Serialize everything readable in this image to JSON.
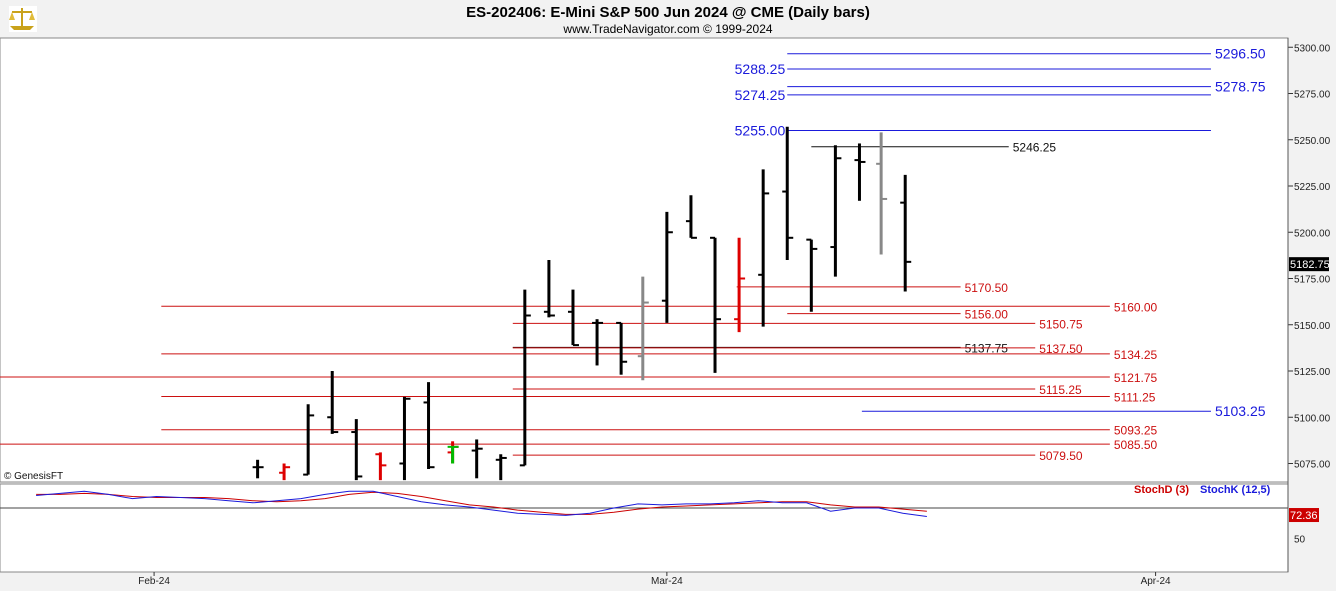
{
  "header": {
    "title": "ES-202406:  E-Mini S&P 500 Jun 2024 @ CME  (Daily bars)",
    "subtitle": "www.TradeNavigator.com © 1999-2024",
    "logo_icon": "trade-navigator-scales-logo"
  },
  "copyright": "© GenesisFT",
  "colors": {
    "up_bar": "#000000",
    "red_bar": "#dd0000",
    "gray_bar": "#888888",
    "green_bar": "#00bb00",
    "red_level": "#cc1010",
    "blue_level": "#1a1adb",
    "stoch_d": "#cc0000",
    "stoch_k": "#1a1adb"
  },
  "chart_data": {
    "type": "ohlc",
    "price_axis": {
      "ylim": [
        5065,
        5305
      ],
      "ticks": [
        5300,
        5275,
        5250,
        5225,
        5200,
        5175,
        5150,
        5125,
        5100,
        5075
      ],
      "tick_labels": [
        "5300.00",
        "5275.00",
        "5250.00",
        "5225.00",
        "5200.00",
        "5175.00",
        "5150.00",
        "5125.00",
        "5100.00",
        "5075.00"
      ],
      "last_price": "5182.75"
    },
    "x_axis": {
      "tick_labels": [
        "Feb-24",
        "Mar-24",
        "Apr-24"
      ],
      "tick_slots": [
        6.4,
        27.7,
        48.0
      ],
      "slot_range": [
        0,
        53.5
      ]
    },
    "bars": [
      {
        "slot": 10.7,
        "open": 5073,
        "high": 5077,
        "low": 5067,
        "close": 5073,
        "color": "black"
      },
      {
        "slot": 11.8,
        "open": 5070,
        "high": 5075,
        "low": 5066,
        "close": 5073,
        "color": "red"
      },
      {
        "slot": 12.8,
        "open": 5069,
        "high": 5107,
        "low": 5069,
        "close": 5101,
        "color": "black"
      },
      {
        "slot": 13.8,
        "open": 5100,
        "high": 5125,
        "low": 5091,
        "close": 5092,
        "color": "black"
      },
      {
        "slot": 14.8,
        "open": 5092,
        "high": 5099,
        "low": 5066,
        "close": 5068,
        "color": "black"
      },
      {
        "slot": 15.8,
        "open": 5080,
        "high": 5081,
        "low": 5066,
        "close": 5074,
        "color": "red"
      },
      {
        "slot": 16.8,
        "open": 5075,
        "high": 5111,
        "low": 5066,
        "close": 5110,
        "color": "black"
      },
      {
        "slot": 17.8,
        "open": 5108,
        "high": 5119,
        "low": 5072,
        "close": 5073,
        "color": "black"
      },
      {
        "slot": 18.8,
        "open": 5081,
        "high": 5087,
        "low": 5075,
        "close": 5084,
        "color": "red"
      },
      {
        "slot": 18.8,
        "open": 5084,
        "high": 5080,
        "low": 5075,
        "close": 5084,
        "color": "green"
      },
      {
        "slot": 19.8,
        "open": 5082,
        "high": 5088,
        "low": 5067,
        "close": 5083,
        "color": "black"
      },
      {
        "slot": 20.8,
        "open": 5077,
        "high": 5080,
        "low": 5066,
        "close": 5078,
        "color": "black"
      },
      {
        "slot": 21.8,
        "open": 5074,
        "high": 5169,
        "low": 5074,
        "close": 5155,
        "color": "black"
      },
      {
        "slot": 22.8,
        "open": 5157,
        "high": 5185,
        "low": 5154,
        "close": 5155,
        "color": "black"
      },
      {
        "slot": 23.8,
        "open": 5157,
        "high": 5169,
        "low": 5139,
        "close": 5139,
        "color": "black"
      },
      {
        "slot": 24.8,
        "open": 5151,
        "high": 5153,
        "low": 5128,
        "close": 5151,
        "color": "black"
      },
      {
        "slot": 25.8,
        "open": 5151,
        "high": 5151,
        "low": 5123,
        "close": 5130,
        "color": "black"
      },
      {
        "slot": 26.7,
        "open": 5133,
        "high": 5176,
        "low": 5120,
        "close": 5162,
        "color": "gray"
      },
      {
        "slot": 27.7,
        "open": 5163,
        "high": 5211,
        "low": 5151,
        "close": 5200,
        "color": "black"
      },
      {
        "slot": 28.7,
        "open": 5206,
        "high": 5220,
        "low": 5197,
        "close": 5197,
        "color": "black"
      },
      {
        "slot": 29.7,
        "open": 5197,
        "high": 5197,
        "low": 5124,
        "close": 5153,
        "color": "black"
      },
      {
        "slot": 30.7,
        "open": 5153,
        "high": 5197,
        "low": 5146,
        "close": 5175,
        "color": "red"
      },
      {
        "slot": 31.7,
        "open": 5177,
        "high": 5234,
        "low": 5149,
        "close": 5221,
        "color": "black"
      },
      {
        "slot": 32.7,
        "open": 5222,
        "high": 5257,
        "low": 5185,
        "close": 5197,
        "color": "black"
      },
      {
        "slot": 33.7,
        "open": 5196,
        "high": 5196,
        "low": 5157,
        "close": 5191,
        "color": "black"
      },
      {
        "slot": 34.7,
        "open": 5192,
        "high": 5247,
        "low": 5176,
        "close": 5240,
        "color": "black"
      },
      {
        "slot": 35.7,
        "open": 5239,
        "high": 5248,
        "low": 5217,
        "close": 5238,
        "color": "black"
      },
      {
        "slot": 36.6,
        "open": 5237,
        "high": 5254,
        "low": 5188,
        "close": 5218,
        "color": "gray"
      },
      {
        "slot": 37.6,
        "open": 5216,
        "high": 5231,
        "low": 5168,
        "close": 5184,
        "color": "black"
      }
    ],
    "levels": [
      {
        "value": 5296.5,
        "label": "5296.50",
        "color": "blue",
        "from_slot": 32.7,
        "to_slot": 50.3,
        "label_side": "right"
      },
      {
        "value": 5288.25,
        "label": "5288.25",
        "color": "blue",
        "from_slot": 32.7,
        "to_slot": 50.3,
        "label_side": "left"
      },
      {
        "value": 5278.75,
        "label": "5278.75",
        "color": "blue",
        "from_slot": 32.7,
        "to_slot": 50.3,
        "label_side": "right"
      },
      {
        "value": 5274.25,
        "label": "5274.25",
        "color": "blue",
        "from_slot": 32.7,
        "to_slot": 50.3,
        "label_side": "left"
      },
      {
        "value": 5255.0,
        "label": "5255.00",
        "color": "blue",
        "from_slot": 32.7,
        "to_slot": 50.3,
        "label_side": "left"
      },
      {
        "value": 5246.25,
        "label": "5246.25",
        "color": "black",
        "from_slot": 33.7,
        "to_slot": 41.9,
        "label_side": "right"
      },
      {
        "value": 5170.5,
        "label": "5170.50",
        "color": "red",
        "from_slot": 30.6,
        "to_slot": 39.9,
        "label_side": "right"
      },
      {
        "value": 5160.0,
        "label": "5160.00",
        "color": "red",
        "from_slot": 6.7,
        "to_slot": 46.1,
        "label_side": "right"
      },
      {
        "value": 5156.0,
        "label": "5156.00",
        "color": "red",
        "from_slot": 32.7,
        "to_slot": 39.9,
        "label_side": "right"
      },
      {
        "value": 5150.75,
        "label": "5150.75",
        "color": "red",
        "from_slot": 21.3,
        "to_slot": 43.0,
        "label_side": "right"
      },
      {
        "value": 5137.75,
        "label": "5137.75",
        "color": "black",
        "from_slot": 21.3,
        "to_slot": 39.9,
        "label_side": "right"
      },
      {
        "value": 5137.5,
        "label": "5137.50",
        "color": "red",
        "from_slot": 21.3,
        "to_slot": 43.0,
        "label_side": "right"
      },
      {
        "value": 5134.25,
        "label": "5134.25",
        "color": "red",
        "from_slot": 6.7,
        "to_slot": 46.1,
        "label_side": "right"
      },
      {
        "value": 5121.75,
        "label": "5121.75",
        "color": "red",
        "from_slot": 0,
        "to_slot": 46.1,
        "label_side": "right"
      },
      {
        "value": 5115.25,
        "label": "5115.25",
        "color": "red",
        "from_slot": 21.3,
        "to_slot": 43.0,
        "label_side": "right"
      },
      {
        "value": 5111.25,
        "label": "5111.25",
        "color": "red",
        "from_slot": 6.7,
        "to_slot": 46.1,
        "label_side": "right"
      },
      {
        "value": 5103.25,
        "label": "5103.25",
        "color": "blue",
        "from_slot": 35.8,
        "to_slot": 50.3,
        "label_side": "right"
      },
      {
        "value": 5093.25,
        "label": "5093.25",
        "color": "red",
        "from_slot": 6.7,
        "to_slot": 46.1,
        "label_side": "right"
      },
      {
        "value": 5085.5,
        "label": "5085.50",
        "color": "red",
        "from_slot": 0,
        "to_slot": 46.1,
        "label_side": "right"
      },
      {
        "value": 5079.5,
        "label": "5079.50",
        "color": "red",
        "from_slot": 21.3,
        "to_slot": 43.0,
        "label_side": "right"
      }
    ],
    "stochastic": {
      "ylim": [
        20,
        100
      ],
      "ticks": [
        50
      ],
      "tick_labels": [
        "50"
      ],
      "last_value": "72.36",
      "labels": [
        "StochD (3)",
        "StochK (12,5)"
      ],
      "slots": [
        1.5,
        2.5,
        3.5,
        4.5,
        5.5,
        6.5,
        7.5,
        8.5,
        9.5,
        10.5,
        11.5,
        12.5,
        13.5,
        14.5,
        15.5,
        16.5,
        17.5,
        18.5,
        19.5,
        20.5,
        21.5,
        22.5,
        23.5,
        24.5,
        25.5,
        26.5,
        27.5,
        28.5,
        29.5,
        30.5,
        31.5,
        32.5,
        33.5,
        34.5,
        35.5,
        36.5,
        37.5,
        38.5
      ],
      "stoch_k": [
        91,
        93,
        95,
        92,
        88,
        90,
        89,
        88,
        86,
        84,
        86,
        88,
        92,
        95,
        95,
        90,
        85,
        82,
        80,
        77,
        74,
        73,
        72,
        74,
        79,
        83,
        82,
        83,
        83,
        84,
        86,
        84,
        84,
        76,
        79,
        79,
        74,
        71
      ],
      "stoch_d": [
        92,
        92,
        93,
        92,
        90,
        89,
        89,
        89,
        88,
        86,
        85,
        86,
        88,
        92,
        94,
        93,
        90,
        86,
        82,
        80,
        77,
        75,
        73,
        73,
        75,
        78,
        80,
        81,
        82,
        83,
        84,
        85,
        85,
        82,
        80,
        80,
        78,
        76
      ]
    }
  }
}
